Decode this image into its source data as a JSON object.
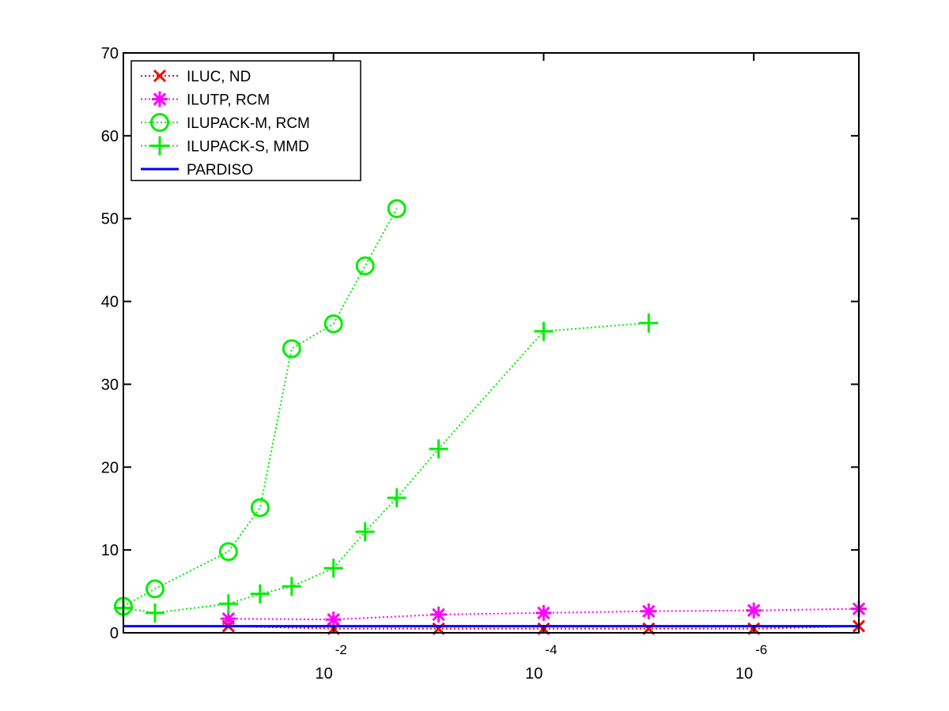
{
  "chart_data": {
    "type": "line",
    "title": "",
    "xlabel": "",
    "ylabel": "",
    "xscale": "log",
    "x_axis_direction": "reversed",
    "xlim": [
      1.0,
      1e-07
    ],
    "ylim": [
      0,
      70
    ],
    "y_ticks": [
      0,
      10,
      20,
      30,
      40,
      50,
      60,
      70
    ],
    "x_ticks": [
      {
        "value": 0.01,
        "base": "10",
        "exponent": "-2"
      },
      {
        "value": 0.0001,
        "base": "10",
        "exponent": "-4"
      },
      {
        "value": 1e-06,
        "base": "10",
        "exponent": "-6"
      }
    ],
    "grid": false,
    "legend": "top-left",
    "series": [
      {
        "name": "ILUC,  ND",
        "color": "#ff0000",
        "marker": "x",
        "line": "dotted",
        "points": [
          {
            "x": 0.1,
            "y": 0.8
          },
          {
            "x": 0.01,
            "y": 0.5
          },
          {
            "x": 0.001,
            "y": 0.5
          },
          {
            "x": 0.0001,
            "y": 0.5
          },
          {
            "x": 1e-05,
            "y": 0.5
          },
          {
            "x": 1e-06,
            "y": 0.5
          },
          {
            "x": 1e-07,
            "y": 0.8
          }
        ]
      },
      {
        "name": "ILUTP, RCM",
        "color": "#ff00ff",
        "marker": "star",
        "line": "dotted",
        "points": [
          {
            "x": 0.1,
            "y": 1.7
          },
          {
            "x": 0.01,
            "y": 1.6
          },
          {
            "x": 0.001,
            "y": 2.2
          },
          {
            "x": 0.0001,
            "y": 2.4
          },
          {
            "x": 1e-05,
            "y": 2.6
          },
          {
            "x": 1e-06,
            "y": 2.7
          },
          {
            "x": 1e-07,
            "y": 2.9
          }
        ]
      },
      {
        "name": "ILUPACK-M, RCM",
        "color": "#00ee00",
        "marker": "circle",
        "line": "dotted",
        "points": [
          {
            "x": 1.0,
            "y": 3.2
          },
          {
            "x": 0.5,
            "y": 5.3
          },
          {
            "x": 0.1,
            "y": 9.8
          },
          {
            "x": 0.05,
            "y": 15.1
          },
          {
            "x": 0.025,
            "y": 34.3
          },
          {
            "x": 0.01,
            "y": 37.3
          },
          {
            "x": 0.005,
            "y": 44.3
          },
          {
            "x": 0.0025,
            "y": 51.2
          }
        ]
      },
      {
        "name": "ILUPACK-S, MMD",
        "color": "#00ee00",
        "marker": "plus",
        "line": "dotted",
        "points": [
          {
            "x": 1.0,
            "y": 3.0
          },
          {
            "x": 0.5,
            "y": 2.4
          },
          {
            "x": 0.1,
            "y": 3.5
          },
          {
            "x": 0.05,
            "y": 4.7
          },
          {
            "x": 0.025,
            "y": 5.6
          },
          {
            "x": 0.01,
            "y": 7.8
          },
          {
            "x": 0.005,
            "y": 12.2
          },
          {
            "x": 0.0025,
            "y": 16.3
          },
          {
            "x": 0.001,
            "y": 22.2
          },
          {
            "x": 0.0001,
            "y": 36.4
          },
          {
            "x": 1e-05,
            "y": 37.4
          }
        ]
      },
      {
        "name": "PARDISO",
        "color": "#0000ff",
        "marker": "none",
        "line": "solid",
        "points": [
          {
            "x": 1.0,
            "y": 0.8
          },
          {
            "x": 1e-07,
            "y": 0.8
          }
        ]
      }
    ]
  }
}
